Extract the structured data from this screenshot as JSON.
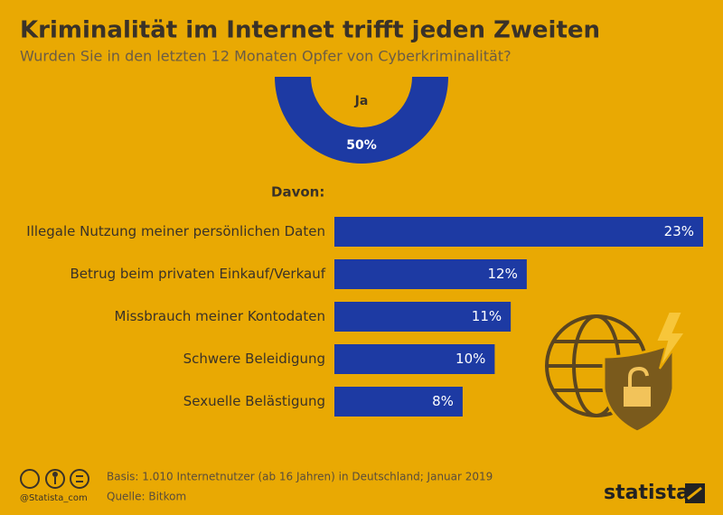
{
  "title": "Kriminalität im Internet trifft jeden Zweiten",
  "subtitle": "Wurden Sie in den letzten 12 Monaten Opfer von Cyberkriminalität?",
  "chart_data": [
    {
      "type": "pie",
      "categories": [
        "Ja"
      ],
      "values": [
        50
      ],
      "value_labels": [
        "50%"
      ],
      "color": "#1d3aa3"
    },
    {
      "type": "bar",
      "title": "Davon:",
      "categories": [
        "Illegale Nutzung meiner persönlichen Daten",
        "Betrug beim privaten Einkauf/Verkauf",
        "Missbrauch meiner Kontodaten",
        "Schwere Beleidigung",
        "Sexuelle Belästigung"
      ],
      "values": [
        23,
        12,
        11,
        10,
        8
      ],
      "value_labels": [
        "23%",
        "12%",
        "11%",
        "10%",
        "8%"
      ],
      "color": "#1d3aa3"
    }
  ],
  "footer": {
    "basis": "Basis: 1.010 Internetnutzer (ab 16 Jahren) in Deutschland; Januar 2019",
    "source": "Quelle: Bitkom",
    "handle": "@Statista_com",
    "brand": "statista"
  }
}
